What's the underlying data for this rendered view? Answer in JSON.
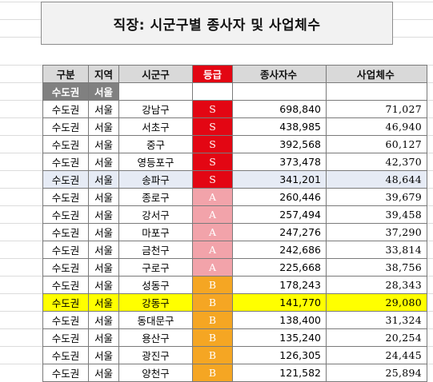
{
  "title": "직장: 시군구별 종사자 및 사업체수",
  "headers": {
    "region": "구분",
    "area": "지역",
    "city": "시군구",
    "grade": "등급",
    "workers": "종사자수",
    "businesses": "사업체수"
  },
  "group_row": {
    "region": "수도권",
    "area": "서울"
  },
  "grade_colors": {
    "S": "#e30613",
    "A": "#f2a3aa",
    "B": "#f5a623"
  },
  "rows": [
    {
      "region": "수도권",
      "area": "서울",
      "city": "강남구",
      "grade": "S",
      "workers": "698,840",
      "businesses": "71,027"
    },
    {
      "region": "수도권",
      "area": "서울",
      "city": "서초구",
      "grade": "S",
      "workers": "438,985",
      "businesses": "46,940"
    },
    {
      "region": "수도권",
      "area": "서울",
      "city": "중구",
      "grade": "S",
      "workers": "392,568",
      "businesses": "60,127"
    },
    {
      "region": "수도권",
      "area": "서울",
      "city": "영등포구",
      "grade": "S",
      "workers": "373,478",
      "businesses": "42,370"
    },
    {
      "region": "수도권",
      "area": "서울",
      "city": "송파구",
      "grade": "S",
      "workers": "341,201",
      "businesses": "48,644",
      "state": "selected"
    },
    {
      "region": "수도권",
      "area": "서울",
      "city": "종로구",
      "grade": "A",
      "workers": "260,446",
      "businesses": "39,679"
    },
    {
      "region": "수도권",
      "area": "서울",
      "city": "강서구",
      "grade": "A",
      "workers": "257,494",
      "businesses": "39,458"
    },
    {
      "region": "수도권",
      "area": "서울",
      "city": "마포구",
      "grade": "A",
      "workers": "247,276",
      "businesses": "37,290"
    },
    {
      "region": "수도권",
      "area": "서울",
      "city": "금천구",
      "grade": "A",
      "workers": "242,686",
      "businesses": "33,814"
    },
    {
      "region": "수도권",
      "area": "서울",
      "city": "구로구",
      "grade": "A",
      "workers": "225,668",
      "businesses": "38,756"
    },
    {
      "region": "수도권",
      "area": "서울",
      "city": "성동구",
      "grade": "B",
      "workers": "178,243",
      "businesses": "28,343"
    },
    {
      "region": "수도권",
      "area": "서울",
      "city": "강동구",
      "grade": "B",
      "workers": "141,770",
      "businesses": "29,080",
      "state": "highlighted"
    },
    {
      "region": "수도권",
      "area": "서울",
      "city": "동대문구",
      "grade": "B",
      "workers": "138,400",
      "businesses": "31,324"
    },
    {
      "region": "수도권",
      "area": "서울",
      "city": "용산구",
      "grade": "B",
      "workers": "135,240",
      "businesses": "20,254"
    },
    {
      "region": "수도권",
      "area": "서울",
      "city": "광진구",
      "grade": "B",
      "workers": "126,305",
      "businesses": "24,445"
    },
    {
      "region": "수도권",
      "area": "서울",
      "city": "양천구",
      "grade": "B",
      "workers": "121,582",
      "businesses": "25,894"
    }
  ]
}
